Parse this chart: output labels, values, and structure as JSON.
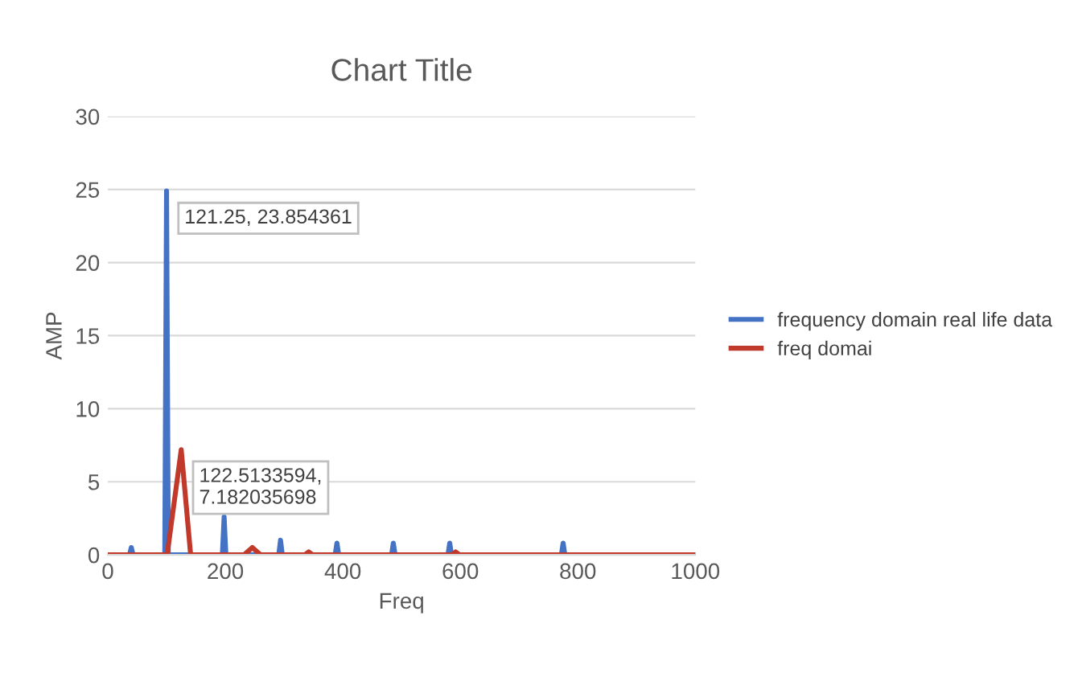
{
  "chart_data": {
    "type": "line",
    "title": "Chart Title",
    "xlabel": "Freq",
    "ylabel": "AMP",
    "xlim": [
      0,
      1000
    ],
    "xticks": [
      0,
      200,
      400,
      600,
      800,
      1000
    ],
    "ylim": [
      0,
      30
    ],
    "yticks": [
      0,
      5,
      10,
      15,
      20,
      25,
      30
    ],
    "grid": "y",
    "legend": "right",
    "marker": "none",
    "line_style": "solid",
    "series": [
      {
        "name": "frequency domain real life data",
        "color": "#4472c4",
        "x": [
          0,
          37,
          40,
          43,
          97,
          100,
          103,
          195,
          198,
          201,
          291,
          294,
          297,
          387,
          390,
          393,
          483,
          486,
          489,
          579,
          582,
          585,
          772,
          775,
          778,
          1000
        ],
        "values": [
          0,
          0,
          0.5,
          0,
          0,
          24.9,
          0,
          0,
          2.6,
          0,
          0,
          1,
          0,
          0,
          0.8,
          0,
          0,
          0.8,
          0,
          0,
          0.8,
          0,
          0,
          0.8,
          0,
          0
        ]
      },
      {
        "name": "freq domai",
        "color": "#c0392b",
        "x": [
          0,
          101,
          125,
          141,
          232,
          246,
          260,
          335,
          342,
          349,
          585,
          592,
          599,
          1000
        ],
        "values": [
          0,
          0,
          7.2,
          0,
          0,
          0.5,
          0,
          0,
          0.2,
          0,
          0,
          0.2,
          0,
          0
        ]
      }
    ],
    "annotations": [
      "121.25, 23.854361",
      "122.5133594,\n7.182035698"
    ]
  }
}
